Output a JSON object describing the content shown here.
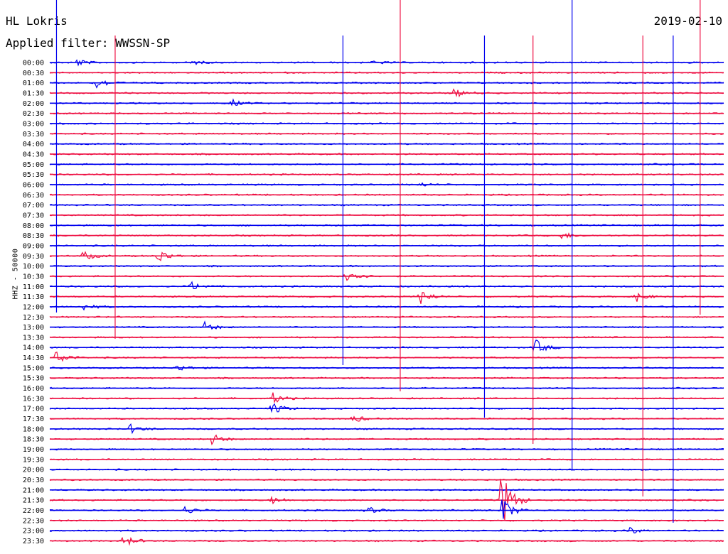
{
  "chart_data": {
    "type": "line",
    "title": "HL Lokris",
    "subtitle": "Applied filter: WWSSN-SP",
    "date": "2019-02-10",
    "ylabel": "HHZ - 50000",
    "row_labels": [
      "00:00",
      "00:30",
      "01:00",
      "01:30",
      "02:00",
      "02:30",
      "03:00",
      "03:30",
      "04:00",
      "04:30",
      "05:00",
      "05:30",
      "06:00",
      "06:30",
      "07:00",
      "07:30",
      "08:00",
      "08:30",
      "09:00",
      "09:30",
      "10:00",
      "10:30",
      "11:00",
      "11:30",
      "12:00",
      "12:30",
      "13:00",
      "13:30",
      "14:00",
      "14:30",
      "15:00",
      "15:30",
      "16:00",
      "16:30",
      "17:00",
      "17:30",
      "18:00",
      "18:30",
      "19:00",
      "19:30",
      "20:00",
      "20:30",
      "21:00",
      "21:30",
      "22:00",
      "22:30",
      "23:00",
      "23:30"
    ],
    "series_colors": [
      "#0000ee",
      "#ee1144"
    ],
    "events": [
      {
        "row": "00:00",
        "t": 0.04,
        "amp": 0.35
      },
      {
        "row": "00:00",
        "t": 0.21,
        "amp": 0.25
      },
      {
        "row": "00:00",
        "t": 0.48,
        "amp": 0.2
      },
      {
        "row": "01:00",
        "t": 0.07,
        "amp": 0.6
      },
      {
        "row": "01:30",
        "t": 0.6,
        "amp": 0.45
      },
      {
        "row": "02:00",
        "t": 0.27,
        "amp": 0.35
      },
      {
        "row": "06:00",
        "t": 0.55,
        "amp": 0.2
      },
      {
        "row": "08:30",
        "t": 0.76,
        "amp": 0.35
      },
      {
        "row": "09:30",
        "t": 0.05,
        "amp": 0.5
      },
      {
        "row": "09:30",
        "t": 0.16,
        "amp": 0.8
      },
      {
        "row": "10:30",
        "t": 0.44,
        "amp": 0.9
      },
      {
        "row": "11:00",
        "t": 0.21,
        "amp": 0.45
      },
      {
        "row": "11:30",
        "t": 0.55,
        "amp": 0.8
      },
      {
        "row": "11:30",
        "t": 0.87,
        "amp": 0.5
      },
      {
        "row": "12:00",
        "t": 0.05,
        "amp": 0.35
      },
      {
        "row": "13:00",
        "t": 0.23,
        "amp": 0.5
      },
      {
        "row": "14:00",
        "t": 0.72,
        "amp": 0.85
      },
      {
        "row": "14:30",
        "t": 0.01,
        "amp": 0.8
      },
      {
        "row": "15:00",
        "t": 0.19,
        "amp": 0.35
      },
      {
        "row": "16:30",
        "t": 0.33,
        "amp": 0.6
      },
      {
        "row": "17:00",
        "t": 0.33,
        "amp": 0.6
      },
      {
        "row": "17:30",
        "t": 0.45,
        "amp": 0.4
      },
      {
        "row": "18:00",
        "t": 0.12,
        "amp": 0.45
      },
      {
        "row": "18:30",
        "t": 0.24,
        "amp": 0.6
      },
      {
        "row": "21:30",
        "t": 0.33,
        "amp": 0.4
      },
      {
        "row": "21:30",
        "t": 0.67,
        "amp": 3.2
      },
      {
        "row": "22:00",
        "t": 0.2,
        "amp": 0.4
      },
      {
        "row": "22:00",
        "t": 0.47,
        "amp": 0.4
      },
      {
        "row": "22:00",
        "t": 0.67,
        "amp": 1.5
      },
      {
        "row": "23:30",
        "t": 0.11,
        "amp": 0.6
      },
      {
        "row": "23:00",
        "t": 0.86,
        "amp": 0.35
      }
    ],
    "spikes": [
      0.01,
      0.097,
      0.435,
      0.52,
      0.645,
      0.717,
      0.775,
      0.88,
      0.925,
      0.965
    ]
  }
}
